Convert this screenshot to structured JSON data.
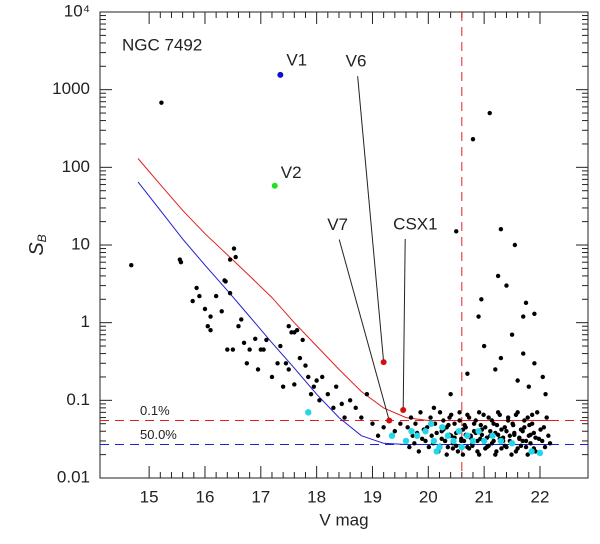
{
  "chart_data": {
    "type": "scatter",
    "title": "NGC 7492",
    "x_label": "V mag",
    "y_label": "S",
    "y_label_subscript": "B",
    "xlim": [
      14.12,
      22.86
    ],
    "ylim": [
      0.01,
      10000
    ],
    "log_y": true,
    "xticks": [
      15,
      16,
      17,
      18,
      19,
      20,
      21,
      22
    ],
    "yticks": [
      0.01,
      0.1,
      1,
      10,
      100,
      1000,
      {
        "value": 10000,
        "label": "10⁴"
      }
    ],
    "points": {
      "color": "#000000",
      "x": [
        14.68,
        15.22,
        15.55,
        15.57,
        15.78,
        15.85,
        15.9,
        16.0,
        16.05,
        16.1,
        16.1,
        16.2,
        16.3,
        16.35,
        16.37,
        16.4,
        16.45,
        16.52,
        16.55,
        16.5,
        16.45,
        16.6,
        16.65,
        16.7,
        16.75,
        16.8,
        16.9,
        16.95,
        17.0,
        17.05,
        17.1,
        17.2,
        17.3,
        17.35,
        17.4,
        17.45,
        17.5,
        17.55,
        17.6,
        17.65,
        17.7,
        17.5,
        17.6,
        17.75,
        17.8,
        17.85,
        17.9,
        17.95,
        18.0,
        18.05,
        18.1,
        18.2,
        18.3,
        18.35,
        18.45,
        18.5,
        18.6,
        18.7,
        18.8,
        18.9,
        19.0,
        19.1,
        19.2,
        19.4,
        19.5,
        20.5,
        20.8,
        21.1,
        21.3,
        21.55,
        21.25,
        21.4,
        20.95,
        21.7,
        21.75,
        21.9,
        20.9,
        21.5,
        21.0,
        21.7,
        21.3,
        21.9,
        22.05,
        21.2,
        21.6,
        20.7,
        22.1,
        21.8,
        20.4,
        20.1,
        19.6,
        19.63,
        19.66,
        19.69,
        19.72,
        19.75,
        19.77,
        19.8,
        19.83,
        19.86,
        19.89,
        19.92,
        19.95,
        19.98,
        20.01,
        20.04,
        20.06,
        20.09,
        20.12,
        20.15,
        20.18,
        20.21,
        20.24,
        20.27,
        20.3,
        20.33,
        20.35,
        20.38,
        20.41,
        20.44,
        20.47,
        20.5,
        20.53,
        20.56,
        20.59,
        20.62,
        20.64,
        20.67,
        20.7,
        20.73,
        20.76,
        20.79,
        20.82,
        20.85,
        20.88,
        20.91,
        20.93,
        20.96,
        20.99,
        21.02,
        21.05,
        21.08,
        21.11,
        21.14,
        21.17,
        21.2,
        21.22,
        21.25,
        21.28,
        21.31,
        21.34,
        21.37,
        21.4,
        21.43,
        21.46,
        21.49,
        21.51,
        21.54,
        21.57,
        21.6,
        21.63,
        21.66,
        21.69,
        21.72,
        21.75,
        21.78,
        21.8,
        21.83,
        21.86,
        21.89,
        21.92,
        21.95,
        21.98,
        22.01,
        22.04,
        22.07,
        22.09,
        22.12,
        22.15,
        22.18,
        20.21,
        20.24,
        20.27,
        20.3,
        20.33,
        20.36,
        20.38,
        20.41,
        20.44,
        20.47,
        20.5,
        20.53,
        20.56,
        20.59,
        20.62,
        20.65,
        20.67,
        20.7,
        20.73,
        20.76,
        20.79,
        20.82,
        20.85,
        20.88,
        20.91,
        20.94,
        20.96,
        20.99,
        21.02,
        21.05,
        21.08,
        21.11,
        21.14,
        21.17,
        21.2,
        21.23,
        21.25,
        21.28,
        21.31,
        21.34,
        21.37,
        21.4,
        21.43,
        21.46,
        21.49,
        21.52,
        21.54,
        21.57,
        21.6,
        21.63,
        21.66,
        21.69,
        21.72,
        21.75,
        21.78,
        21.81,
        21.83,
        21.86,
        21.89,
        21.92
      ],
      "values": [
        5.5,
        680,
        6.5,
        6,
        1.9,
        2.8,
        2.2,
        1.5,
        0.9,
        0.8,
        1.2,
        2.2,
        1.4,
        3.5,
        3.4,
        0.45,
        6.5,
        9.0,
        7.0,
        0.45,
        2.4,
        0.9,
        1.1,
        0.55,
        0.3,
        0.45,
        0.62,
        0.25,
        0.45,
        0.45,
        0.6,
        0.2,
        0.3,
        0.5,
        0.15,
        0.3,
        0.9,
        0.75,
        0.75,
        0.8,
        0.35,
        0.25,
        0.16,
        0.6,
        0.28,
        0.2,
        0.12,
        0.15,
        0.18,
        0.1,
        0.2,
        0.12,
        0.08,
        0.15,
        0.09,
        0.06,
        0.1,
        0.08,
        0.06,
        0.12,
        0.05,
        0.035,
        0.045,
        0.04,
        0.05,
        15,
        230,
        500,
        16,
        10,
        4,
        3,
        2,
        1.2,
        1.8,
        1.3,
        1.2,
        0.7,
        0.5,
        0.4,
        0.35,
        0.3,
        0.2,
        0.25,
        0.18,
        0.22,
        0.12,
        0.15,
        0.12,
        0.08,
        0.03,
        0.045,
        0.025,
        0.06,
        0.035,
        0.028,
        0.05,
        0.038,
        0.022,
        0.07,
        0.032,
        0.042,
        0.03,
        0.045,
        0.025,
        0.06,
        0.035,
        0.028,
        0.05,
        0.038,
        0.022,
        0.07,
        0.032,
        0.042,
        0.03,
        0.045,
        0.025,
        0.06,
        0.035,
        0.028,
        0.05,
        0.038,
        0.022,
        0.07,
        0.032,
        0.042,
        0.03,
        0.045,
        0.025,
        0.06,
        0.035,
        0.028,
        0.05,
        0.038,
        0.022,
        0.07,
        0.032,
        0.042,
        0.03,
        0.045,
        0.025,
        0.06,
        0.035,
        0.028,
        0.05,
        0.038,
        0.022,
        0.07,
        0.032,
        0.042,
        0.03,
        0.045,
        0.025,
        0.06,
        0.035,
        0.028,
        0.05,
        0.038,
        0.022,
        0.07,
        0.032,
        0.042,
        0.03,
        0.045,
        0.025,
        0.06,
        0.035,
        0.028,
        0.05,
        0.038,
        0.022,
        0.07,
        0.032,
        0.042,
        0.03,
        0.045,
        0.025,
        0.06,
        0.035,
        0.028,
        0.026,
        0.04,
        0.055,
        0.03,
        0.02,
        0.048,
        0.036,
        0.065,
        0.024,
        0.033,
        0.026,
        0.04,
        0.055,
        0.03,
        0.02,
        0.048,
        0.036,
        0.065,
        0.024,
        0.033,
        0.026,
        0.04,
        0.055,
        0.03,
        0.02,
        0.048,
        0.036,
        0.065,
        0.024,
        0.033,
        0.026,
        0.04,
        0.055,
        0.03,
        0.02,
        0.048,
        0.036,
        0.065,
        0.024,
        0.033,
        0.026,
        0.04,
        0.055,
        0.03,
        0.02,
        0.048,
        0.036,
        0.065,
        0.024,
        0.033,
        0.026,
        0.04,
        0.055,
        0.03,
        0.02,
        0.048,
        0.036,
        0.065,
        0.024,
        0.033
      ]
    },
    "cyan_points": {
      "color": "#22d8e8",
      "x": [
        17.85,
        19.35,
        19.6,
        19.8,
        19.95,
        20.05,
        20.1,
        20.2,
        20.25,
        20.35,
        20.45,
        20.55,
        20.6,
        20.7,
        20.8,
        20.9,
        21.0,
        21.15,
        21.3,
        21.5,
        21.85,
        22.0,
        20.15,
        19.7
      ],
      "values": [
        0.07,
        0.035,
        0.03,
        0.035,
        0.04,
        0.05,
        0.03,
        0.025,
        0.045,
        0.035,
        0.03,
        0.04,
        0.025,
        0.035,
        0.03,
        0.04,
        0.03,
        0.035,
        0.03,
        0.028,
        0.022,
        0.021,
        0.022,
        0.04
      ]
    },
    "curves": [
      {
        "color": "#e02020",
        "x": [
          14.8,
          15.2,
          15.6,
          16.0,
          16.4,
          16.8,
          17.2,
          17.6,
          18.0,
          18.4,
          18.8,
          19.2,
          19.6,
          20.0,
          21,
          22.2
        ],
        "values": [
          130,
          60,
          28,
          14,
          7.5,
          4,
          2.1,
          1.0,
          0.5,
          0.25,
          0.13,
          0.08,
          0.06,
          0.055,
          0.055,
          0.055
        ]
      },
      {
        "color": "#2020d0",
        "x": [
          14.8,
          15.2,
          15.6,
          16.0,
          16.4,
          16.8,
          17.2,
          17.6,
          18.0,
          18.4,
          18.8,
          19.2,
          19.6,
          22.2
        ],
        "values": [
          65,
          28,
          12,
          5.5,
          2.6,
          1.2,
          0.55,
          0.26,
          0.12,
          0.06,
          0.035,
          0.028,
          0.027,
          0.027
        ]
      }
    ],
    "hlines": [
      {
        "value": 0.055,
        "label": "0.1%",
        "color": "#e02020"
      },
      {
        "value": 0.027,
        "label": "50.0%",
        "color": "#2020d0"
      }
    ],
    "vlines": [
      {
        "value": 20.6,
        "color": "#e02020"
      }
    ],
    "annotations": [
      {
        "label": "V1",
        "x": 17.35,
        "y": 1550,
        "color": "#1010d0"
      },
      {
        "label": "V2",
        "x": 17.25,
        "y": 58,
        "color": "#20e020"
      },
      {
        "label": "V6",
        "x": 19.2,
        "y": 0.31,
        "color": "#d01010"
      },
      {
        "label": "V7",
        "x": 19.3,
        "y": 0.055,
        "color": "#d01010"
      },
      {
        "label": "CSX1",
        "x": 19.55,
        "y": 0.075,
        "color": "#d01010"
      }
    ]
  }
}
